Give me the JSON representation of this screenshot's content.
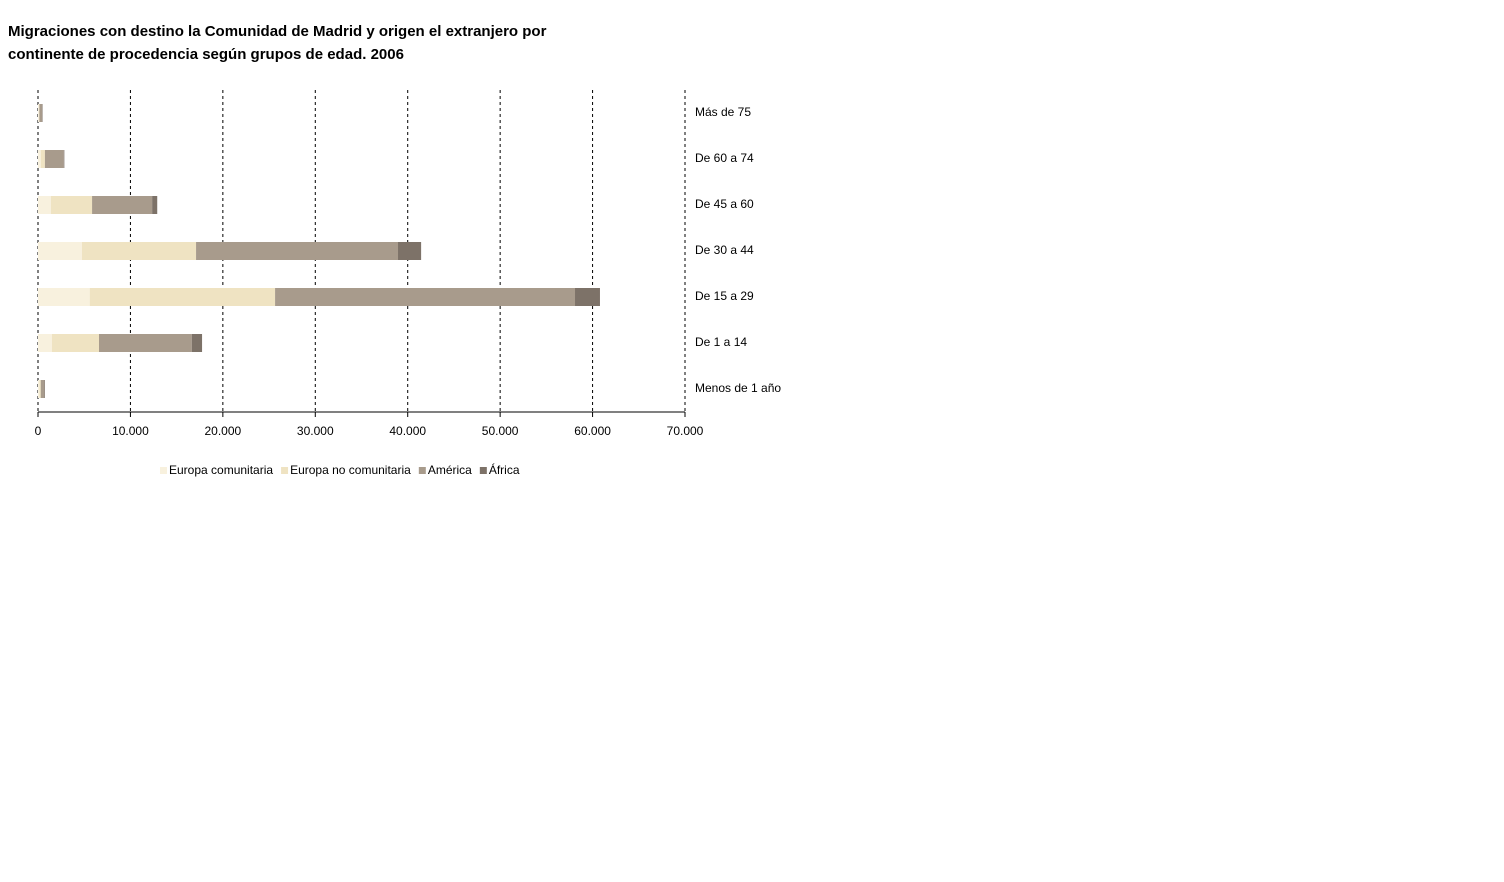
{
  "chart_data": {
    "type": "stacked-barh",
    "title": "Migraciones con destino la Comunidad de Madrid y origen el extranjero por continente de procedencia según grupos de edad. 2006",
    "categories": [
      "Más de 75",
      "De 60 a 74",
      "De 45 a 60",
      "De 30 a 44",
      "De 15 a 29",
      "De 1 a 14",
      "Menos de 1 año"
    ],
    "series": [
      {
        "name": "Europa comunitaria",
        "color": "#f8f1de",
        "values": [
          100,
          300,
          1400,
          4750,
          5600,
          1500,
          150
        ]
      },
      {
        "name": "Europa no comunitaria",
        "color": "#efe3c2",
        "values": [
          50,
          450,
          4450,
          12350,
          20050,
          5100,
          150
        ]
      },
      {
        "name": "América",
        "color": "#a89b8c",
        "values": [
          300,
          2050,
          6500,
          21850,
          32450,
          10050,
          400
        ]
      },
      {
        "name": "África",
        "color": "#7d7268",
        "values": [
          50,
          50,
          550,
          2500,
          2700,
          1100,
          50
        ]
      }
    ],
    "xlim": [
      0,
      70000
    ],
    "xticks": [
      0,
      {
        "value": 10000,
        "label": "10.000"
      },
      {
        "value": 20000,
        "label": "20.000"
      },
      {
        "value": 30000,
        "label": "30.000"
      },
      {
        "value": 40000,
        "label": "40.000"
      },
      {
        "value": 50000,
        "label": "50.000"
      },
      {
        "value": 60000,
        "label": "60.000"
      },
      {
        "value": 70000,
        "label": "70.000"
      }
    ],
    "grid": true
  }
}
